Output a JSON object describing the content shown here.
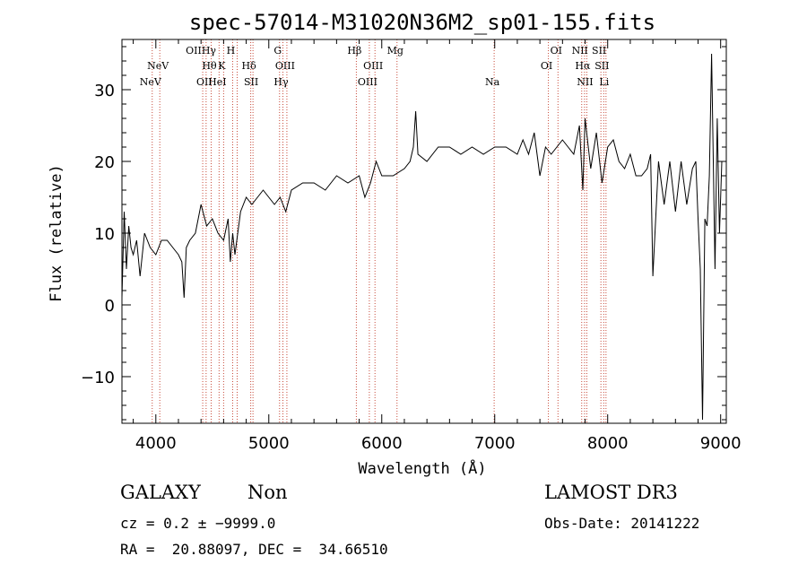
{
  "chart_data": {
    "type": "line",
    "title": "spec-57014-M31020N36M2_sp01-155.fits",
    "xlabel": "Wavelength (Å)",
    "ylabel": "Flux (relative)",
    "xlim": [
      3700,
      9050
    ],
    "ylim": [
      -16.5,
      37
    ],
    "xticks": [
      4000,
      5000,
      6000,
      7000,
      8000,
      9000
    ],
    "xtick_labels": [
      "4000",
      "5000",
      "6000",
      "7000",
      "8000",
      "9000"
    ],
    "yticks": [
      -10,
      0,
      10,
      20,
      30
    ],
    "ytick_labels": [
      "−10",
      "0",
      "10",
      "20",
      "30"
    ],
    "series": [
      {
        "name": "flux",
        "color": "#000000",
        "x": [
          3700,
          3720,
          3740,
          3760,
          3780,
          3800,
          3830,
          3860,
          3900,
          3950,
          4000,
          4050,
          4100,
          4150,
          4200,
          4230,
          4250,
          4270,
          4300,
          4350,
          4400,
          4450,
          4500,
          4550,
          4600,
          4640,
          4660,
          4680,
          4700,
          4750,
          4800,
          4850,
          4900,
          4950,
          5000,
          5050,
          5100,
          5150,
          5200,
          5300,
          5400,
          5500,
          5600,
          5700,
          5800,
          5850,
          5900,
          5950,
          6000,
          6100,
          6200,
          6250,
          6280,
          6300,
          6320,
          6400,
          6500,
          6600,
          6700,
          6800,
          6900,
          7000,
          7100,
          7200,
          7250,
          7300,
          7350,
          7400,
          7450,
          7500,
          7550,
          7600,
          7650,
          7700,
          7750,
          7780,
          7800,
          7850,
          7900,
          7950,
          8000,
          8050,
          8100,
          8150,
          8200,
          8250,
          8300,
          8350,
          8380,
          8400,
          8450,
          8500,
          8550,
          8600,
          8650,
          8700,
          8750,
          8780,
          8800,
          8820,
          8840,
          8860,
          8880,
          8900,
          8920,
          8950,
          8970,
          8990,
          9010
        ],
        "y": [
          1,
          13,
          5,
          11,
          8,
          7,
          9,
          4,
          10,
          8,
          7,
          9,
          9,
          8,
          7,
          6,
          1,
          8,
          9,
          10,
          14,
          11,
          12,
          10,
          9,
          12,
          6,
          10,
          7,
          13,
          15,
          14,
          15,
          16,
          15,
          14,
          15,
          13,
          16,
          17,
          17,
          16,
          18,
          17,
          18,
          15,
          17,
          20,
          18,
          18,
          19,
          20,
          22,
          27,
          21,
          20,
          22,
          22,
          21,
          22,
          21,
          22,
          22,
          21,
          23,
          21,
          24,
          18,
          22,
          21,
          22,
          23,
          22,
          21,
          25,
          16,
          26,
          19,
          24,
          17,
          22,
          23,
          20,
          19,
          21,
          18,
          18,
          19,
          21,
          4,
          20,
          14,
          20,
          13,
          20,
          14,
          19,
          20,
          12,
          5,
          -16,
          12,
          11,
          18,
          35,
          5,
          26,
          10,
          20
        ]
      }
    ],
    "emission_lines": [
      {
        "wavelength": 3968,
        "label": "NeV",
        "row": 3
      },
      {
        "wavelength": 4035,
        "label": "NeV",
        "row": 2
      },
      {
        "wavelength": 4415,
        "label": "OIIHγ",
        "row": 1
      },
      {
        "wavelength": 4445,
        "label": "OII",
        "row": 3
      },
      {
        "wavelength": 4490,
        "label": "Hθ",
        "row": 2
      },
      {
        "wavelength": 4560,
        "label": "HeI",
        "row": 3
      },
      {
        "wavelength": 4600,
        "label": "K",
        "row": 2
      },
      {
        "wavelength": 4680,
        "label": "H",
        "row": 1
      },
      {
        "wavelength": 4720,
        "label": "",
        "row": 0
      },
      {
        "wavelength": 4840,
        "label": "Hδ",
        "row": 2
      },
      {
        "wavelength": 4860,
        "label": "SII",
        "row": 3
      },
      {
        "wavelength": 5095,
        "label": "G",
        "row": 1
      },
      {
        "wavelength": 5125,
        "label": "Hγ",
        "row": 3
      },
      {
        "wavelength": 5160,
        "label": "OIII",
        "row": 2
      },
      {
        "wavelength": 5775,
        "label": "Hβ",
        "row": 1
      },
      {
        "wavelength": 5890,
        "label": "OIII",
        "row": 3
      },
      {
        "wavelength": 5940,
        "label": "OIII",
        "row": 2
      },
      {
        "wavelength": 6135,
        "label": "Mg",
        "row": 1
      },
      {
        "wavelength": 6995,
        "label": "Na",
        "row": 3
      },
      {
        "wavelength": 7475,
        "label": "OI",
        "row": 2
      },
      {
        "wavelength": 7560,
        "label": "OI",
        "row": 1
      },
      {
        "wavelength": 7770,
        "label": "NII",
        "row": 1
      },
      {
        "wavelength": 7795,
        "label": "Hα",
        "row": 2
      },
      {
        "wavelength": 7815,
        "label": "NII",
        "row": 3
      },
      {
        "wavelength": 7940,
        "label": "SII",
        "row": 1
      },
      {
        "wavelength": 7965,
        "label": "SII",
        "row": 2
      },
      {
        "wavelength": 7985,
        "label": "Li",
        "row": 3
      }
    ],
    "grid": false,
    "legend": "none"
  },
  "info": {
    "class_label": "GALAXY",
    "subclass_label": "Non",
    "survey_label": "LAMOST DR3",
    "redshift_label": "cz = 0.2 ± −9999.0",
    "obsdate_label": "Obs-Date: 20141222",
    "coords_label": "RA =  20.88097, DEC =  34.66510"
  },
  "colors": {
    "emission_line": "#c84c3c",
    "spectrum": "#000000",
    "axes": "#000000"
  }
}
